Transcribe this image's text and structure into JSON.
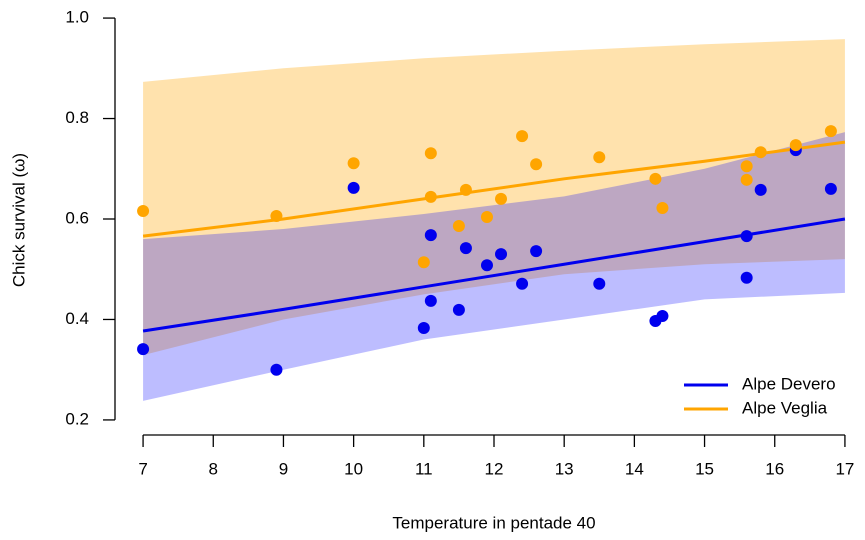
{
  "chart_data": {
    "type": "scatter",
    "xlabel": "Temperature in pentade 40",
    "ylabel": "Chick survival (ω)",
    "xlim": [
      6.6,
      17.4
    ],
    "ylim": [
      0.17,
      1.03
    ],
    "xticks": [
      7,
      8,
      9,
      10,
      11,
      12,
      13,
      14,
      15,
      16,
      17
    ],
    "yticks": [
      0.2,
      0.4,
      0.6,
      0.8,
      {
        "value": 1,
        "label": "1.0"
      }
    ],
    "legend": "bottom-right",
    "series": [
      {
        "name": "Alpe Devero",
        "color": "#0000ee",
        "band_color": "rgba(0,0,255,0.26)",
        "x": [
          7,
          8.9,
          10,
          11,
          11.1,
          11.1,
          11.5,
          11.6,
          11.9,
          12.1,
          12.4,
          12.6,
          13.5,
          14.3,
          14.4,
          15.6,
          15.6,
          15.8,
          16.3,
          16.8
        ],
        "values": [
          0.341,
          0.3,
          0.662,
          0.383,
          0.568,
          0.437,
          0.419,
          0.542,
          0.508,
          0.53,
          0.471,
          0.536,
          0.471,
          0.397,
          0.407,
          0.566,
          0.483,
          0.658,
          0.737,
          0.66
        ],
        "fit": {
          "x": [
            7,
            9,
            11,
            13,
            15,
            17
          ],
          "values": [
            0.377,
            0.42,
            0.465,
            0.51,
            0.555,
            0.6
          ],
          "lower": [
            0.238,
            0.3,
            0.36,
            0.4,
            0.44,
            0.453
          ],
          "upper": [
            0.56,
            0.58,
            0.61,
            0.645,
            0.7,
            0.773
          ]
        }
      },
      {
        "name": "Alpe Veglia",
        "color": "#ffa500",
        "band_color": "rgba(255,165,0,0.32)",
        "x": [
          7,
          8.9,
          10,
          11,
          11.1,
          11.1,
          11.5,
          11.6,
          11.9,
          12.1,
          12.4,
          12.6,
          13.5,
          14.3,
          14.4,
          15.6,
          15.6,
          15.8,
          16.3,
          16.8
        ],
        "values": [
          0.616,
          0.606,
          0.711,
          0.514,
          0.731,
          0.644,
          0.586,
          0.658,
          0.604,
          0.64,
          0.765,
          0.709,
          0.723,
          0.68,
          0.622,
          0.705,
          0.678,
          0.733,
          0.747,
          0.775
        ],
        "fit": {
          "x": [
            7,
            9,
            11,
            13,
            15,
            17
          ],
          "values": [
            0.566,
            0.6,
            0.64,
            0.68,
            0.715,
            0.753
          ],
          "lower": [
            0.329,
            0.4,
            0.45,
            0.49,
            0.51,
            0.52
          ],
          "upper": [
            0.873,
            0.9,
            0.92,
            0.935,
            0.948,
            0.958
          ]
        }
      }
    ]
  }
}
